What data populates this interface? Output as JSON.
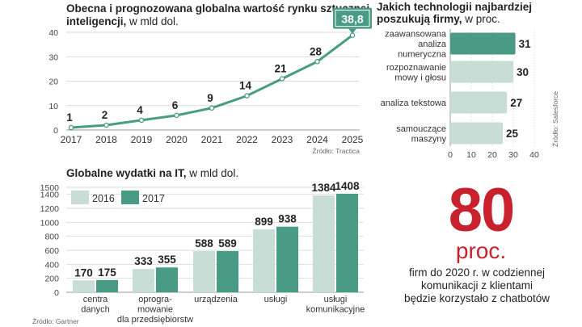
{
  "colors": {
    "accent": "#4a9b85",
    "light": "#c7ddd5",
    "line": "#4a9b85",
    "stat_red": "#c8202c",
    "grid": "#cfcfcf"
  },
  "chart_data": [
    {
      "type": "line",
      "title": "Obecna i prognozowana globalna wartość rynku sztucznej",
      "title_line2": "inteligencji,",
      "subtitle": "w mld dol.",
      "x": [
        "2017",
        "2018",
        "2019",
        "2020",
        "2021",
        "2022",
        "2023",
        "2024",
        "2025"
      ],
      "values": [
        1,
        2,
        4,
        6,
        9,
        14,
        21,
        28,
        38.8
      ],
      "value_labels": [
        "1",
        "2",
        "4",
        "6",
        "9",
        "14",
        "21",
        "28",
        "38,8"
      ],
      "highlight_last": true,
      "yticks": [
        "0",
        "10",
        "20",
        "30",
        "40"
      ],
      "ylim": [
        0,
        40
      ],
      "grid": true,
      "source": "Źródło: Tractica"
    },
    {
      "type": "bar",
      "orientation": "horizontal",
      "title": "Jakich technologii najbardziej",
      "title_line2": "poszukują firmy,",
      "subtitle": "w proc.",
      "categories": [
        [
          "zaawansowana",
          "analiza",
          "numeryczna"
        ],
        [
          "rozpoznawanie",
          "mowy i głosu"
        ],
        [
          "analiza tekstowa"
        ],
        [
          "samouczące",
          "maszyny"
        ]
      ],
      "values": [
        31,
        30,
        27,
        25
      ],
      "value_labels": [
        "31",
        "30",
        "27",
        "25"
      ],
      "xticks": [
        "0",
        "10",
        "20",
        "30",
        "40"
      ],
      "xlim": [
        0,
        40
      ],
      "source": "Źródło: Salesforce"
    },
    {
      "type": "bar",
      "title": "Globalne wydatki na IT,",
      "subtitle": "w mld dol.",
      "categories": [
        [
          "centra",
          "danych"
        ],
        [
          "oprogra-",
          "mowanie",
          "dla przedsiębiorstw"
        ],
        [
          "urządzenia"
        ],
        [
          "usługi"
        ],
        [
          "usługi",
          "komunikacyjne"
        ]
      ],
      "series": [
        {
          "name": "2016",
          "values": [
            170,
            333,
            588,
            899,
            1384
          ],
          "labels": [
            "170",
            "333",
            "588",
            "899",
            "1384"
          ]
        },
        {
          "name": "2017",
          "values": [
            175,
            355,
            589,
            938,
            1408
          ],
          "labels": [
            "175",
            "355",
            "589",
            "938",
            "1408"
          ]
        }
      ],
      "yticks": [
        "0",
        "200",
        "400",
        "600",
        "800",
        "1000",
        "1200",
        "1400",
        "1500"
      ],
      "ylim": [
        0,
        1500
      ],
      "legend": "top-left",
      "grid": true,
      "source": "Źródło: Gartner"
    }
  ],
  "stat": {
    "number": "80",
    "unit": "proc.",
    "lines": [
      "firm do 2020 r.  w codziennej",
      "komunikacji z klientami",
      "będzie korzystało z chatbotów"
    ]
  }
}
